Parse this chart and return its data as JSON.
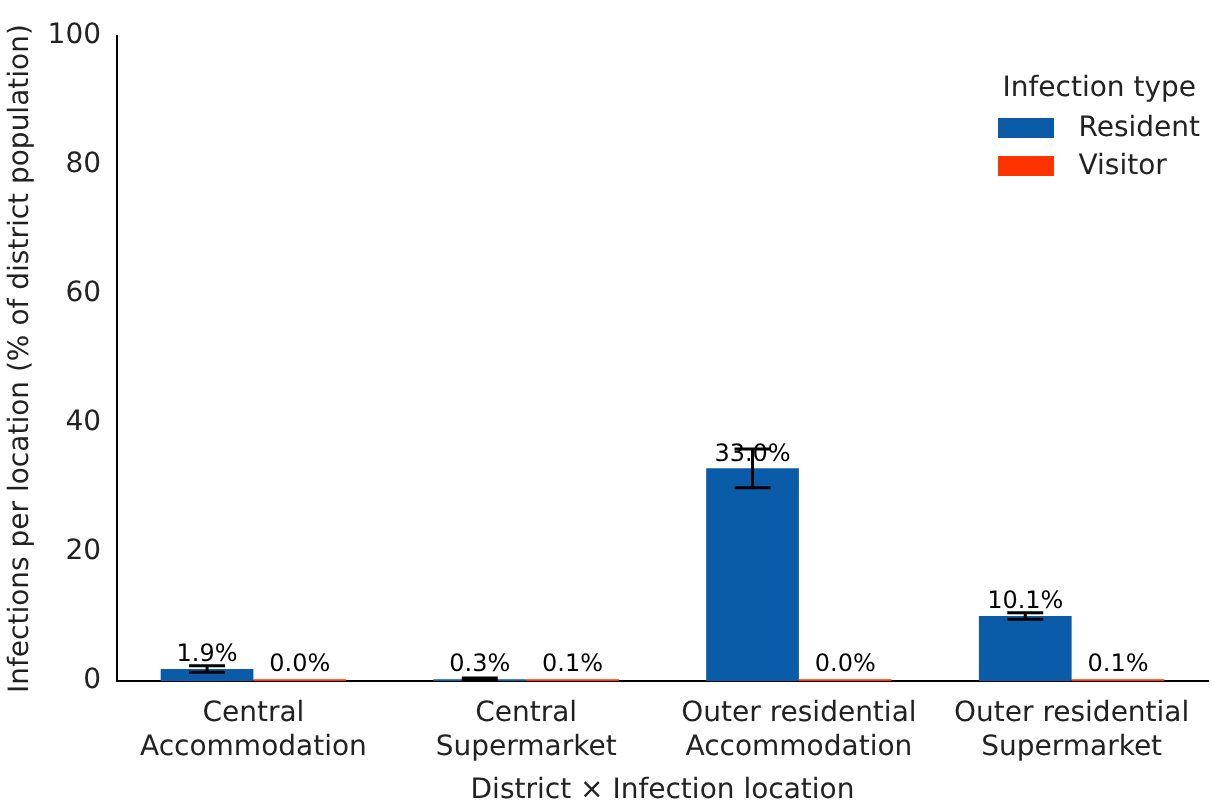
{
  "chart_data": {
    "type": "bar",
    "xlabel": "District × Infection location",
    "ylabel": "Infections per location (% of district population)",
    "legend_title": "Infection type",
    "legend": "top right",
    "grid": false,
    "categories": [
      "Central\nAccommodation",
      "Central\nSupermarket",
      "Outer residential\nAccommodation",
      "Outer residential\nSupermarket"
    ],
    "ylim": [
      0,
      100
    ],
    "yticks": [
      0,
      20,
      40,
      60,
      80,
      100
    ],
    "series": [
      {
        "name": "Resident",
        "color": "#0b5ca8",
        "values": [
          1.9,
          0.3,
          33.0,
          10.1
        ],
        "errors": [
          0.5,
          0.2,
          3,
          0.5
        ],
        "value_labels": [
          "1.9%",
          "0.3%",
          "33.0%",
          "10.1%"
        ]
      },
      {
        "name": "Visitor",
        "color": "#ff3300",
        "values": [
          0.0,
          0.1,
          0.0,
          0.1
        ],
        "value_labels": [
          "0.0%",
          "0.1%",
          "0.0%",
          "0.1%"
        ]
      }
    ]
  }
}
